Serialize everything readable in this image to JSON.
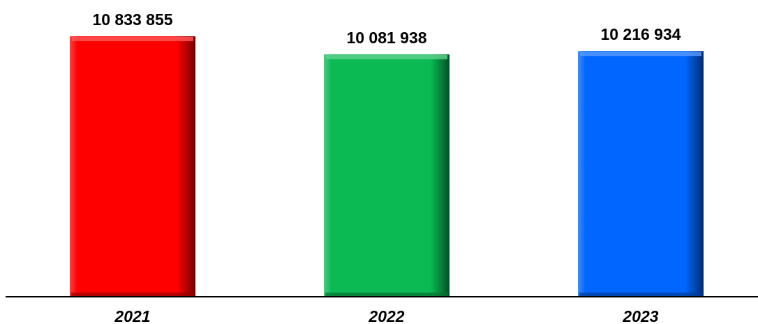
{
  "chart_data": {
    "type": "bar",
    "categories": [
      "2021",
      "2022",
      "2023"
    ],
    "values": [
      10833855,
      10081938,
      10216934
    ],
    "value_labels": [
      "10 833 855",
      "10 081 938",
      "10 216 934"
    ],
    "bar_colors": [
      "#ff0000",
      "#0bba53",
      "#0066ff"
    ],
    "ylim": [
      0,
      11000000
    ],
    "grid": false,
    "legend": "none"
  }
}
